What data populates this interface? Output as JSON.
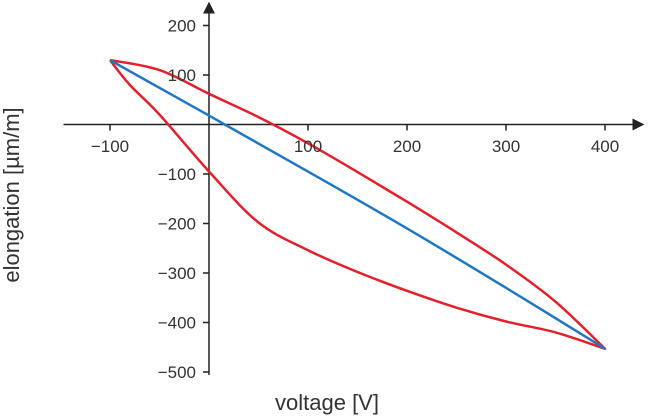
{
  "chart_data": {
    "type": "line",
    "xlabel": "voltage [V]",
    "ylabel": "elongation [µm/m]",
    "xlim": [
      -150,
      440
    ],
    "ylim": [
      -510,
      250
    ],
    "xticks": [
      -100,
      100,
      200,
      300,
      400
    ],
    "xtick_labels": [
      "−100",
      "100",
      "200",
      "300",
      "400"
    ],
    "yticks": [
      200,
      100,
      -100,
      -200,
      -300,
      -400,
      -500
    ],
    "ytick_labels": [
      "200",
      "100",
      "−100",
      "−200",
      "−300",
      "−400",
      "−500"
    ],
    "grid": false,
    "legend": "none",
    "series": [
      {
        "color": "#e3202b",
        "points": [
          [
            -100,
            130
          ],
          [
            -50,
            110
          ],
          [
            0,
            62
          ],
          [
            50,
            15
          ],
          [
            100,
            -38
          ],
          [
            150,
            -96
          ],
          [
            200,
            -156
          ],
          [
            250,
            -218
          ],
          [
            300,
            -283
          ],
          [
            350,
            -358
          ],
          [
            400,
            -453
          ],
          [
            350,
            -420
          ],
          [
            300,
            -398
          ],
          [
            250,
            -370
          ],
          [
            200,
            -336
          ],
          [
            150,
            -298
          ],
          [
            100,
            -254
          ],
          [
            50,
            -198
          ],
          [
            0,
            -95
          ],
          [
            -50,
            20
          ],
          [
            -80,
            80
          ],
          [
            -100,
            130
          ]
        ]
      },
      {
        "color": "#1f77c4",
        "points": [
          [
            -100,
            130
          ],
          [
            0,
            18
          ],
          [
            100,
            -95
          ],
          [
            200,
            -210
          ],
          [
            300,
            -330
          ],
          [
            400,
            -453
          ]
        ]
      }
    ]
  }
}
